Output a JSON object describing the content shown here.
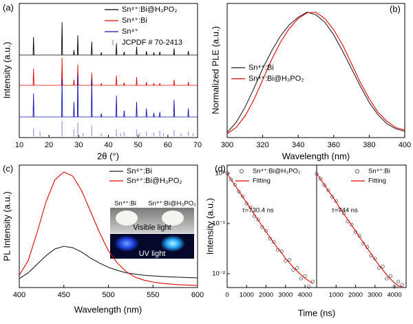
{
  "chart_data": [
    {
      "type": "xrd",
      "panel": "(a)",
      "xlabel": "2θ (°)",
      "ylabel": "Intensity (a.u.)",
      "xlim": [
        10,
        70
      ],
      "xticks": [
        10,
        20,
        30,
        40,
        50,
        60,
        70
      ],
      "legend": "upper right",
      "series": [
        {
          "name": "Sn⁴⁺:Bi@H₃PO₂",
          "color": "#000000",
          "x": [
            14.8,
            24.4,
            28.4,
            29.7,
            34.4,
            37.6,
            42.7,
            45.3,
            49.5,
            52.8,
            55.3,
            57.3,
            62.1,
            66.9
          ],
          "values": [
            0.55,
            1.0,
            0.15,
            0.6,
            0.4,
            0.08,
            0.35,
            0.1,
            0.25,
            0.12,
            0.08,
            0.1,
            0.2,
            0.12
          ]
        },
        {
          "name": "Sn⁴⁺:Bi",
          "color": "#e00000",
          "x": [
            14.8,
            24.4,
            28.4,
            29.7,
            34.4,
            37.6,
            42.7,
            45.3,
            49.5,
            52.8,
            55.3,
            57.3,
            62.1,
            66.9
          ],
          "values": [
            0.6,
            1.0,
            0.2,
            0.75,
            0.45,
            0.06,
            0.35,
            0.1,
            0.3,
            0.12,
            0.08,
            0.08,
            0.2,
            0.12
          ]
        },
        {
          "name": "Sn⁴⁺",
          "color": "#1010b0",
          "x": [
            14.8,
            24.4,
            28.4,
            29.7,
            34.4,
            37.6,
            42.7,
            45.3,
            49.5,
            52.8,
            55.3,
            57.3,
            62.1,
            66.9
          ],
          "values": [
            0.55,
            0.9,
            0.35,
            1.0,
            0.9,
            0.08,
            0.5,
            0.15,
            0.35,
            0.2,
            0.1,
            0.12,
            0.4,
            0.2
          ]
        },
        {
          "name": "JCPDF # 70-2413",
          "color": "#a4a4d8",
          "x": [
            14.8,
            17.0,
            24.4,
            28.4,
            29.7,
            31.5,
            34.4,
            37.6,
            42.7,
            44.1,
            45.3,
            49.5,
            50.5,
            52.8,
            55.3,
            57.3,
            58.5,
            62.1,
            64.5,
            66.9,
            68.5
          ],
          "values": [
            0.5,
            0.3,
            1.0,
            0.45,
            0.9,
            0.2,
            0.7,
            0.2,
            0.45,
            0.2,
            0.3,
            0.45,
            0.2,
            0.3,
            0.25,
            0.35,
            0.2,
            0.4,
            0.2,
            0.3,
            0.2
          ]
        }
      ]
    },
    {
      "type": "line",
      "panel": "(b)",
      "xlabel": "Wavelength (nm)",
      "ylabel": "Normalized PLE (a.u.)",
      "xlim": [
        300,
        400
      ],
      "xticks": [
        300,
        320,
        340,
        360,
        380,
        400
      ],
      "ylim": [
        0,
        1.07
      ],
      "legend": "center left",
      "x": [
        300,
        305,
        310,
        315,
        320,
        325,
        330,
        335,
        340,
        345,
        350,
        355,
        360,
        365,
        370,
        375,
        380,
        385,
        390,
        395,
        400
      ],
      "series": [
        {
          "name": "Sn⁴⁺:Bi",
          "color": "#222222",
          "style": "line",
          "values": [
            0.04,
            0.12,
            0.24,
            0.39,
            0.55,
            0.69,
            0.81,
            0.9,
            0.96,
            1.0,
            0.98,
            0.92,
            0.82,
            0.69,
            0.55,
            0.41,
            0.28,
            0.18,
            0.11,
            0.07,
            0.05
          ]
        },
        {
          "name": "Sn⁴⁺:Bi@H₃PO₂",
          "color": "#e00000",
          "style": "line",
          "values": [
            0.03,
            0.08,
            0.17,
            0.3,
            0.46,
            0.62,
            0.76,
            0.87,
            0.95,
            0.995,
            1.0,
            0.95,
            0.86,
            0.74,
            0.59,
            0.44,
            0.31,
            0.2,
            0.13,
            0.08,
            0.06
          ]
        }
      ]
    },
    {
      "type": "line",
      "panel": "(c)",
      "xlabel": "Wavelength (nm)",
      "ylabel": "PL Intensity (a.u.)",
      "xlim": [
        400,
        600
      ],
      "xticks": [
        400,
        450,
        500,
        550,
        600
      ],
      "ylim": [
        0,
        1
      ],
      "legend": "upper right",
      "x": [
        400,
        410,
        420,
        430,
        440,
        450,
        460,
        470,
        480,
        490,
        500,
        510,
        520,
        530,
        540,
        550,
        560,
        570,
        580,
        590,
        600
      ],
      "series": [
        {
          "name": "Sn⁴⁺:Bi",
          "color": "#222222",
          "style": "line",
          "values": [
            0.073,
            0.12,
            0.19,
            0.26,
            0.315,
            0.337,
            0.325,
            0.29,
            0.24,
            0.2,
            0.165,
            0.14,
            0.12,
            0.11,
            0.1,
            0.095,
            0.09,
            0.087,
            0.084,
            0.081,
            0.079
          ]
        },
        {
          "name": "Sn⁴⁺:Bi@H₃PO₂",
          "color": "#e00000",
          "style": "line",
          "values": [
            0.1,
            0.22,
            0.45,
            0.7,
            0.88,
            0.944,
            0.91,
            0.79,
            0.62,
            0.45,
            0.3,
            0.2,
            0.13,
            0.085,
            0.06,
            0.045,
            0.035,
            0.028,
            0.023,
            0.02,
            0.017
          ]
        }
      ],
      "inset": {
        "samples": [
          "Sn⁴⁺:Bi",
          "Sn⁴⁺:Bi@H₃PO₂"
        ],
        "conditions": [
          "Visible light",
          "UV light"
        ]
      }
    },
    {
      "type": "line",
      "panel": "(d)",
      "xlabel": "Time (ns)",
      "ylabel": "Intensity (a.u.)",
      "ylog": true,
      "xlim": [
        0,
        4600
      ],
      "xticks": [
        0,
        1000,
        2000,
        3000,
        4000
      ],
      "ylim": [
        0.0053,
        1.46
      ],
      "yticks": [
        {
          "value": 1,
          "label": "10⁰"
        },
        {
          "value": 0.1,
          "label": "10⁻¹"
        },
        {
          "value": 0.01,
          "label": "10⁻²"
        }
      ],
      "legend": "upper right",
      "annotation": "τ=730.4 ns",
      "x": [
        0,
        200,
        400,
        600,
        800,
        1000,
        1200,
        1400,
        1600,
        1800,
        2000,
        2200,
        2400,
        2600,
        2800,
        3000,
        3200,
        3400,
        3600,
        3800,
        4000,
        4200,
        4400
      ],
      "series": [
        {
          "name": "Sn⁴⁺:Bi@H₃PO₂",
          "color": "#555555",
          "style": "markers",
          "values": [
            1.02,
            0.75,
            0.59,
            0.43,
            0.35,
            0.25,
            0.21,
            0.14,
            0.12,
            0.085,
            0.072,
            0.05,
            0.043,
            0.03,
            0.028,
            0.018,
            0.019,
            0.012,
            0.013,
            0.008,
            0.009,
            0.0055,
            0.007
          ]
        },
        {
          "name": "Fitting",
          "color": "#e00000",
          "style": "line",
          "values": [
            1.0,
            0.76,
            0.58,
            0.44,
            0.34,
            0.26,
            0.2,
            0.15,
            0.116,
            0.089,
            0.069,
            0.053,
            0.041,
            0.032,
            0.026,
            0.02,
            0.0165,
            0.0135,
            0.0112,
            0.0095,
            0.0082,
            0.0072,
            0.0064
          ]
        }
      ]
    },
    {
      "type": "line",
      "panel": "",
      "ylog": true,
      "xlim": [
        0,
        4600
      ],
      "xticks": [
        1000,
        2000,
        3000,
        4000
      ],
      "ylim": [
        0.0053,
        1.46
      ],
      "legend": "upper right",
      "annotation": "τ=744 ns",
      "x": [
        0,
        200,
        400,
        600,
        800,
        1000,
        1200,
        1400,
        1600,
        1800,
        2000,
        2200,
        2400,
        2600,
        2800,
        3000,
        3200,
        3400,
        3600,
        3800,
        4000,
        4200,
        4400
      ],
      "series": [
        {
          "name": "Sn⁴⁺:Bi",
          "color": "#555555",
          "style": "markers",
          "values": [
            0.98,
            0.78,
            0.58,
            0.46,
            0.34,
            0.28,
            0.19,
            0.16,
            0.11,
            0.095,
            0.068,
            0.057,
            0.04,
            0.034,
            0.023,
            0.02,
            0.013,
            0.014,
            0.008,
            0.009,
            0.0055,
            0.007,
            0.006
          ]
        },
        {
          "name": "Fitting",
          "color": "#e00000",
          "style": "line",
          "values": [
            1.0,
            0.77,
            0.59,
            0.45,
            0.35,
            0.27,
            0.2,
            0.155,
            0.12,
            0.092,
            0.071,
            0.054,
            0.042,
            0.032,
            0.025,
            0.019,
            0.015,
            0.012,
            0.0095,
            0.0078,
            0.0066,
            0.0057,
            0.0055
          ]
        }
      ]
    }
  ]
}
